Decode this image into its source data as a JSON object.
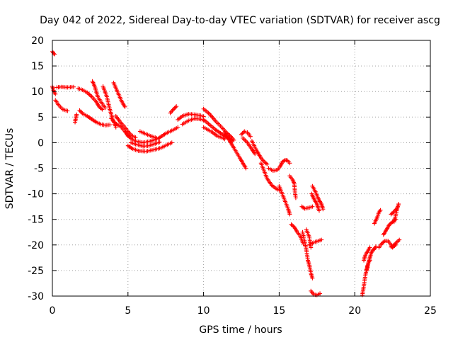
{
  "colors": {
    "series": "#ff0000",
    "grid": "#a0a0a0",
    "axis": "#000000"
  },
  "chart_data": {
    "type": "scatter",
    "title": "Day 042 of 2022, Sidereal Day-to-day VTEC variation (SDTVAR) for receiver ascg",
    "xlabel": "GPS time / hours",
    "ylabel": "SDTVAR / TECUs",
    "xlim": [
      0,
      25
    ],
    "ylim": [
      -30,
      20
    ],
    "xticks": [
      0,
      5,
      10,
      15,
      20,
      25
    ],
    "yticks": [
      -30,
      -25,
      -20,
      -15,
      -10,
      -5,
      0,
      5,
      10,
      15,
      20
    ],
    "grid": true,
    "marker": "+",
    "series": [
      {
        "name": "SDTVAR",
        "arcs": [
          [
            [
              0.0,
              17.8
            ],
            [
              0.1,
              17.4
            ],
            [
              0.15,
              17.3
            ]
          ],
          [
            [
              0.0,
              11.0
            ],
            [
              0.1,
              10.0
            ],
            [
              0.2,
              9.5
            ]
          ],
          [
            [
              0.3,
              10.8
            ],
            [
              0.6,
              10.9
            ],
            [
              1.0,
              10.8
            ],
            [
              1.4,
              10.9
            ]
          ],
          [
            [
              0.2,
              8.3
            ],
            [
              0.45,
              7.2
            ],
            [
              0.7,
              6.5
            ],
            [
              0.9,
              6.3
            ],
            [
              1.0,
              6.2
            ]
          ],
          [
            [
              1.5,
              4.0
            ],
            [
              1.55,
              4.8
            ],
            [
              1.6,
              5.5
            ]
          ],
          [
            [
              1.7,
              10.6
            ],
            [
              2.0,
              10.3
            ],
            [
              2.3,
              9.8
            ],
            [
              2.6,
              9.0
            ],
            [
              2.9,
              8.0
            ],
            [
              3.1,
              7.0
            ],
            [
              3.3,
              6.5
            ]
          ],
          [
            [
              1.8,
              6.3
            ],
            [
              2.0,
              5.7
            ],
            [
              2.3,
              5.2
            ],
            [
              2.6,
              4.6
            ],
            [
              2.9,
              4.0
            ],
            [
              3.2,
              3.6
            ],
            [
              3.5,
              3.4
            ],
            [
              3.8,
              3.5
            ]
          ],
          [
            [
              2.65,
              12.0
            ],
            [
              2.8,
              11.0
            ],
            [
              3.0,
              9.0
            ],
            [
              3.3,
              7.6
            ],
            [
              3.5,
              6.8
            ]
          ],
          [
            [
              3.35,
              11.0
            ],
            [
              3.6,
              9.0
            ],
            [
              3.8,
              6.5
            ],
            [
              4.0,
              4.5
            ],
            [
              4.2,
              3.0
            ]
          ],
          [
            [
              3.9,
              4.7
            ],
            [
              4.1,
              4.0
            ],
            [
              4.3,
              3.5
            ],
            [
              4.5,
              3.2
            ],
            [
              4.8,
              2.2
            ],
            [
              5.0,
              1.3
            ]
          ],
          [
            [
              4.05,
              11.7
            ],
            [
              4.3,
              10.0
            ],
            [
              4.6,
              8.0
            ],
            [
              4.8,
              7.0
            ]
          ],
          [
            [
              4.2,
              5.2
            ],
            [
              4.5,
              4.0
            ],
            [
              4.8,
              3.0
            ],
            [
              5.0,
              2.2
            ],
            [
              5.2,
              1.5
            ],
            [
              5.5,
              1.0
            ]
          ],
          [
            [
              5.0,
              1.4
            ],
            [
              5.2,
              0.8
            ],
            [
              5.5,
              0.3
            ],
            [
              6.0,
              0.0
            ],
            [
              6.5,
              0.3
            ],
            [
              7.0,
              0.8
            ],
            [
              7.5,
              1.8
            ],
            [
              8.0,
              2.5
            ],
            [
              8.3,
              3.0
            ]
          ],
          [
            [
              5.0,
              -0.6
            ],
            [
              5.3,
              -1.2
            ],
            [
              5.7,
              -1.6
            ],
            [
              6.2,
              -1.7
            ],
            [
              6.7,
              -1.4
            ],
            [
              7.2,
              -1.0
            ],
            [
              7.6,
              -0.4
            ],
            [
              7.9,
              0.0
            ]
          ],
          [
            [
              5.2,
              0.0
            ],
            [
              5.6,
              -0.4
            ],
            [
              6.0,
              -0.7
            ],
            [
              6.4,
              -0.6
            ],
            [
              6.8,
              -0.2
            ],
            [
              7.1,
              0.1
            ]
          ],
          [
            [
              5.8,
              2.2
            ],
            [
              6.1,
              1.8
            ],
            [
              6.5,
              1.3
            ],
            [
              6.9,
              0.9
            ]
          ],
          [
            [
              7.8,
              5.8
            ],
            [
              8.0,
              6.5
            ],
            [
              8.2,
              7.1
            ]
          ],
          [
            [
              8.3,
              4.5
            ],
            [
              8.6,
              5.2
            ],
            [
              9.0,
              5.6
            ],
            [
              9.4,
              5.5
            ],
            [
              9.8,
              5.3
            ],
            [
              10.0,
              5.1
            ]
          ],
          [
            [
              8.6,
              3.6
            ],
            [
              9.0,
              4.3
            ],
            [
              9.4,
              4.7
            ],
            [
              9.8,
              4.6
            ],
            [
              10.0,
              4.4
            ]
          ],
          [
            [
              10.0,
              6.6
            ],
            [
              10.4,
              5.6
            ],
            [
              10.8,
              4.2
            ],
            [
              11.2,
              3.0
            ],
            [
              11.5,
              2.0
            ],
            [
              11.8,
              1.2
            ],
            [
              12.0,
              0.5
            ]
          ],
          [
            [
              10.0,
              4.5
            ],
            [
              10.4,
              3.5
            ],
            [
              10.8,
              2.5
            ],
            [
              11.2,
              1.7
            ],
            [
              11.6,
              0.9
            ],
            [
              11.9,
              0.3
            ]
          ],
          [
            [
              10.0,
              3.0
            ],
            [
              10.3,
              2.5
            ],
            [
              10.6,
              2.0
            ],
            [
              10.9,
              1.3
            ],
            [
              11.2,
              1.0
            ],
            [
              11.4,
              0.7
            ]
          ],
          [
            [
              11.4,
              2.0
            ],
            [
              11.7,
              0.5
            ],
            [
              12.0,
              -1.0
            ],
            [
              12.4,
              -3.0
            ],
            [
              12.6,
              -4.0
            ],
            [
              12.8,
              -5.0
            ]
          ],
          [
            [
              12.5,
              1.6
            ],
            [
              12.7,
              2.2
            ],
            [
              12.9,
              2.0
            ],
            [
              13.1,
              1.2
            ]
          ],
          [
            [
              12.6,
              0.9
            ],
            [
              12.9,
              0.0
            ],
            [
              13.2,
              -1.3
            ],
            [
              13.4,
              -2.2
            ]
          ],
          [
            [
              13.2,
              0.3
            ],
            [
              13.5,
              -1.5
            ],
            [
              13.8,
              -3.0
            ],
            [
              14.0,
              -3.7
            ],
            [
              14.2,
              -4.2
            ]
          ],
          [
            [
              13.8,
              -4.0
            ],
            [
              14.0,
              -5.5
            ],
            [
              14.2,
              -7.0
            ],
            [
              14.5,
              -8.3
            ],
            [
              14.8,
              -9.0
            ],
            [
              15.0,
              -9.3
            ]
          ],
          [
            [
              14.3,
              -5.0
            ],
            [
              14.6,
              -5.5
            ],
            [
              14.9,
              -5.3
            ],
            [
              15.1,
              -4.5
            ],
            [
              15.2,
              -3.8
            ],
            [
              15.4,
              -3.4
            ],
            [
              15.55,
              -3.5
            ],
            [
              15.7,
              -4.0
            ]
          ],
          [
            [
              15.0,
              -8.5
            ],
            [
              15.2,
              -10.0
            ],
            [
              15.4,
              -11.5
            ],
            [
              15.6,
              -13.0
            ],
            [
              15.7,
              -14.0
            ]
          ],
          [
            [
              15.7,
              -6.5
            ],
            [
              15.9,
              -7.3
            ],
            [
              16.0,
              -8.0
            ],
            [
              16.05,
              -9.8
            ],
            [
              16.1,
              -10.8
            ]
          ],
          [
            [
              15.8,
              -16.0
            ],
            [
              16.0,
              -16.5
            ],
            [
              16.2,
              -17.5
            ],
            [
              16.4,
              -18.3
            ],
            [
              16.6,
              -19.8
            ]
          ],
          [
            [
              16.5,
              -12.5
            ],
            [
              16.7,
              -12.9
            ],
            [
              17.0,
              -12.7
            ],
            [
              17.2,
              -12.5
            ]
          ],
          [
            [
              16.55,
              -17.5
            ],
            [
              16.7,
              -19.5
            ],
            [
              16.8,
              -21.0
            ],
            [
              16.9,
              -23.0
            ],
            [
              17.0,
              -24.0
            ],
            [
              17.1,
              -25.5
            ],
            [
              17.2,
              -26.5
            ]
          ],
          [
            [
              16.8,
              -17.0
            ],
            [
              17.0,
              -18.5
            ],
            [
              17.1,
              -20.5
            ]
          ],
          [
            [
              17.0,
              -20.0
            ],
            [
              17.3,
              -19.5
            ],
            [
              17.6,
              -19.2
            ],
            [
              17.8,
              -19.0
            ]
          ],
          [
            [
              17.15,
              -10.0
            ],
            [
              17.3,
              -11.0
            ],
            [
              17.5,
              -12.0
            ],
            [
              17.6,
              -13.0
            ],
            [
              17.65,
              -13.3
            ]
          ],
          [
            [
              17.2,
              -8.5
            ],
            [
              17.4,
              -9.6
            ],
            [
              17.6,
              -11.0
            ],
            [
              17.8,
              -12.0
            ],
            [
              17.9,
              -13.0
            ]
          ],
          [
            [
              17.1,
              -29.0
            ],
            [
              17.3,
              -29.7
            ],
            [
              17.5,
              -29.8
            ],
            [
              17.7,
              -29.5
            ]
          ],
          [
            [
              20.5,
              -29.8
            ],
            [
              20.6,
              -28.0
            ],
            [
              20.7,
              -26.0
            ],
            [
              20.8,
              -24.5
            ],
            [
              20.9,
              -23.5
            ],
            [
              21.0,
              -23.0
            ]
          ],
          [
            [
              20.6,
              -23.0
            ],
            [
              20.7,
              -22.0
            ],
            [
              20.9,
              -21.0
            ],
            [
              21.0,
              -20.5
            ]
          ],
          [
            [
              20.8,
              -25.0
            ],
            [
              20.9,
              -23.5
            ],
            [
              21.0,
              -22.5
            ],
            [
              21.1,
              -21.5
            ],
            [
              21.2,
              -21.0
            ],
            [
              21.3,
              -20.8
            ],
            [
              21.4,
              -20.3
            ]
          ],
          [
            [
              21.3,
              -15.8
            ],
            [
              21.5,
              -14.5
            ],
            [
              21.6,
              -13.6
            ],
            [
              21.7,
              -13.2
            ]
          ],
          [
            [
              21.6,
              -20.5
            ],
            [
              21.8,
              -19.7
            ],
            [
              22.0,
              -19.2
            ],
            [
              22.2,
              -19.2
            ],
            [
              22.4,
              -20.0
            ],
            [
              22.5,
              -20.5
            ],
            [
              22.7,
              -20.0
            ]
          ],
          [
            [
              21.9,
              -18.0
            ],
            [
              22.1,
              -17.0
            ],
            [
              22.3,
              -16.0
            ],
            [
              22.5,
              -15.5
            ],
            [
              22.7,
              -15.0
            ]
          ],
          [
            [
              22.6,
              -15.5
            ],
            [
              22.7,
              -14.3
            ],
            [
              22.8,
              -13.0
            ],
            [
              22.9,
              -12.0
            ]
          ],
          [
            [
              22.4,
              -14.0
            ],
            [
              22.6,
              -13.5
            ],
            [
              22.8,
              -12.8
            ]
          ],
          [
            [
              22.4,
              -20.4
            ],
            [
              22.6,
              -20.0
            ],
            [
              22.8,
              -19.4
            ],
            [
              22.95,
              -19.0
            ]
          ]
        ]
      }
    ]
  }
}
